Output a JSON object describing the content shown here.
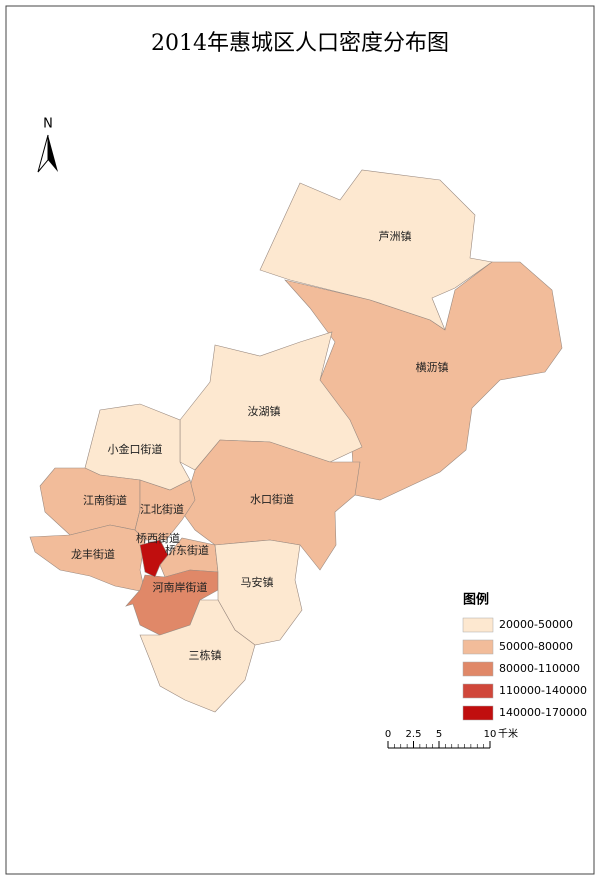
{
  "header": {
    "title": "2014年惠城区人口密度分布图",
    "north": "N"
  },
  "regions": [
    {
      "label": "芦洲镇",
      "color": "#fde8d0"
    },
    {
      "label": "横沥镇",
      "color": "#f2bc9a"
    },
    {
      "label": "汝湖镇",
      "color": "#fde8d0"
    },
    {
      "label": "小金口街道",
      "color": "#fde8d0"
    },
    {
      "label": "水口街道",
      "color": "#f2bc9a"
    },
    {
      "label": "江南街道",
      "color": "#f2bc9a"
    },
    {
      "label": "江北街道",
      "color": "#f2bc9a"
    },
    {
      "label": "龙丰街道",
      "color": "#f2bc9a"
    },
    {
      "label": "桥东街道",
      "color": "#f2bc9a"
    },
    {
      "label": "河南岸街道",
      "color": "#e08868"
    },
    {
      "label": "马安镇",
      "color": "#fde8d0"
    },
    {
      "label": "三栋镇",
      "color": "#fde8d0"
    },
    {
      "label": "桥西街道",
      "color": "#c00e0e"
    }
  ],
  "legend": {
    "title": "图例",
    "items": [
      {
        "label": "20000-50000",
        "color": "#fde8d0"
      },
      {
        "label": "50000-80000",
        "color": "#f2bc9a"
      },
      {
        "label": "80000-110000",
        "color": "#e08868"
      },
      {
        "label": "110000-140000",
        "color": "#d0473a"
      },
      {
        "label": "140000-170000",
        "color": "#c00e0e"
      }
    ]
  },
  "scale_bar": {
    "ticks": [
      0,
      2.5,
      5,
      10
    ],
    "unit": "千米"
  }
}
